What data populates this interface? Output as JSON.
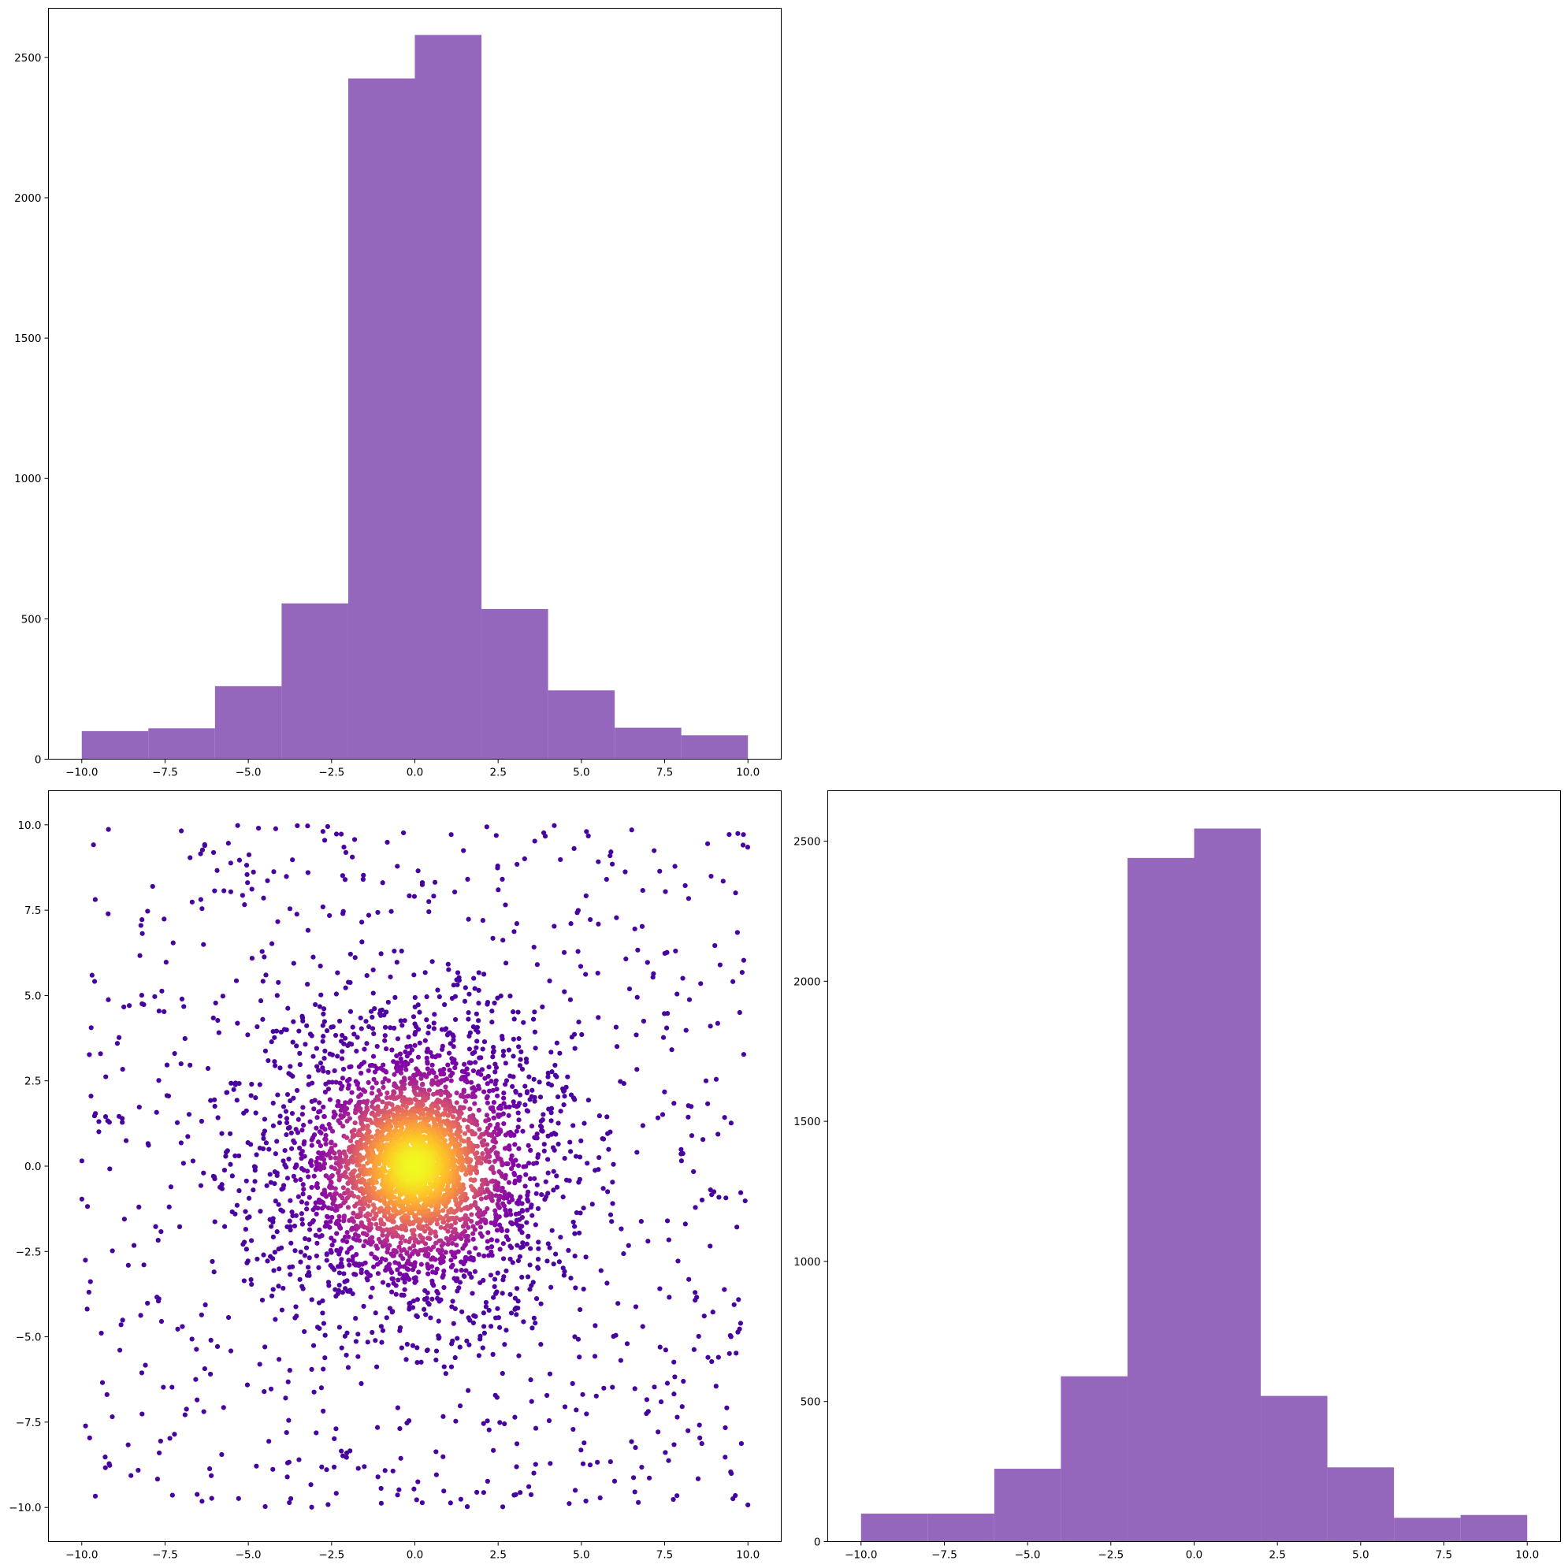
{
  "figure": {
    "layout": "corner plot: histogram top-left, scatter bottom-left, histogram bottom-right, top-right empty"
  },
  "colors": {
    "hist_fill": "#9467bd",
    "axis": "#000000",
    "scatter_colormap": "plasma"
  },
  "chart_data": [
    {
      "type": "bar",
      "subtype": "histogram",
      "panel": "top-left",
      "bin_edges": [
        -10,
        -8,
        -6,
        -4,
        -2,
        0,
        2,
        4,
        6,
        8,
        10
      ],
      "values": [
        100,
        110,
        260,
        555,
        2425,
        2580,
        535,
        245,
        112,
        85
      ],
      "xlim": [
        -11,
        11
      ],
      "ylim": [
        0,
        2675
      ],
      "xticks": [
        -10.0,
        -7.5,
        -5.0,
        -2.5,
        0.0,
        2.5,
        5.0,
        7.5,
        10.0
      ],
      "xtick_labels": [
        "−10.0",
        "−7.5",
        "−5.0",
        "−2.5",
        "0.0",
        "2.5",
        "5.0",
        "7.5",
        "10.0"
      ],
      "yticks": [
        0,
        500,
        1000,
        1500,
        2000,
        2500
      ],
      "ytick_labels": [
        "0",
        "500",
        "1000",
        "1500",
        "2000",
        "2500"
      ],
      "grid": false,
      "title": "",
      "xlabel": "",
      "ylabel": ""
    },
    {
      "type": "scatter",
      "panel": "bottom-left",
      "description": "about 5000 points; uniform background over [-10,10]x[-10,10] plus a dense radial cluster at the origin (radius about 6), colored by local density with plasma colormap (dark purple sparse -> yellow dense at center)",
      "point_count": 5000,
      "xlim": [
        -11,
        11
      ],
      "ylim": [
        -11,
        11
      ],
      "xticks": [
        -10.0,
        -7.5,
        -5.0,
        -2.5,
        0.0,
        2.5,
        5.0,
        7.5,
        10.0
      ],
      "xtick_labels": [
        "−10.0",
        "−7.5",
        "−5.0",
        "−2.5",
        "0.0",
        "2.5",
        "5.0",
        "7.5",
        "10.0"
      ],
      "yticks": [
        -10.0,
        -7.5,
        -5.0,
        -2.5,
        0.0,
        2.5,
        5.0,
        7.5,
        10.0
      ],
      "ytick_labels": [
        "−10.0",
        "−7.5",
        "−5.0",
        "−2.5",
        "0.0",
        "2.5",
        "5.0",
        "7.5",
        "10.0"
      ],
      "grid": false,
      "title": "",
      "xlabel": "",
      "ylabel": ""
    },
    {
      "type": "bar",
      "subtype": "histogram",
      "panel": "bottom-right",
      "bin_edges": [
        -10,
        -8,
        -6,
        -4,
        -2,
        0,
        2,
        4,
        6,
        8,
        10
      ],
      "values": [
        100,
        100,
        260,
        590,
        2440,
        2545,
        520,
        265,
        85,
        95
      ],
      "xlim": [
        -11,
        11
      ],
      "ylim": [
        0,
        2680
      ],
      "xticks": [
        -10.0,
        -7.5,
        -5.0,
        -2.5,
        0.0,
        2.5,
        5.0,
        7.5,
        10.0
      ],
      "xtick_labels": [
        "−10.0",
        "−7.5",
        "−5.0",
        "−2.5",
        "0.0",
        "2.5",
        "5.0",
        "7.5",
        "10.0"
      ],
      "yticks": [
        0,
        500,
        1000,
        1500,
        2000,
        2500
      ],
      "ytick_labels": [
        "0",
        "500",
        "1000",
        "1500",
        "2000",
        "2500"
      ],
      "grid": false,
      "title": "",
      "xlabel": "",
      "ylabel": ""
    }
  ]
}
